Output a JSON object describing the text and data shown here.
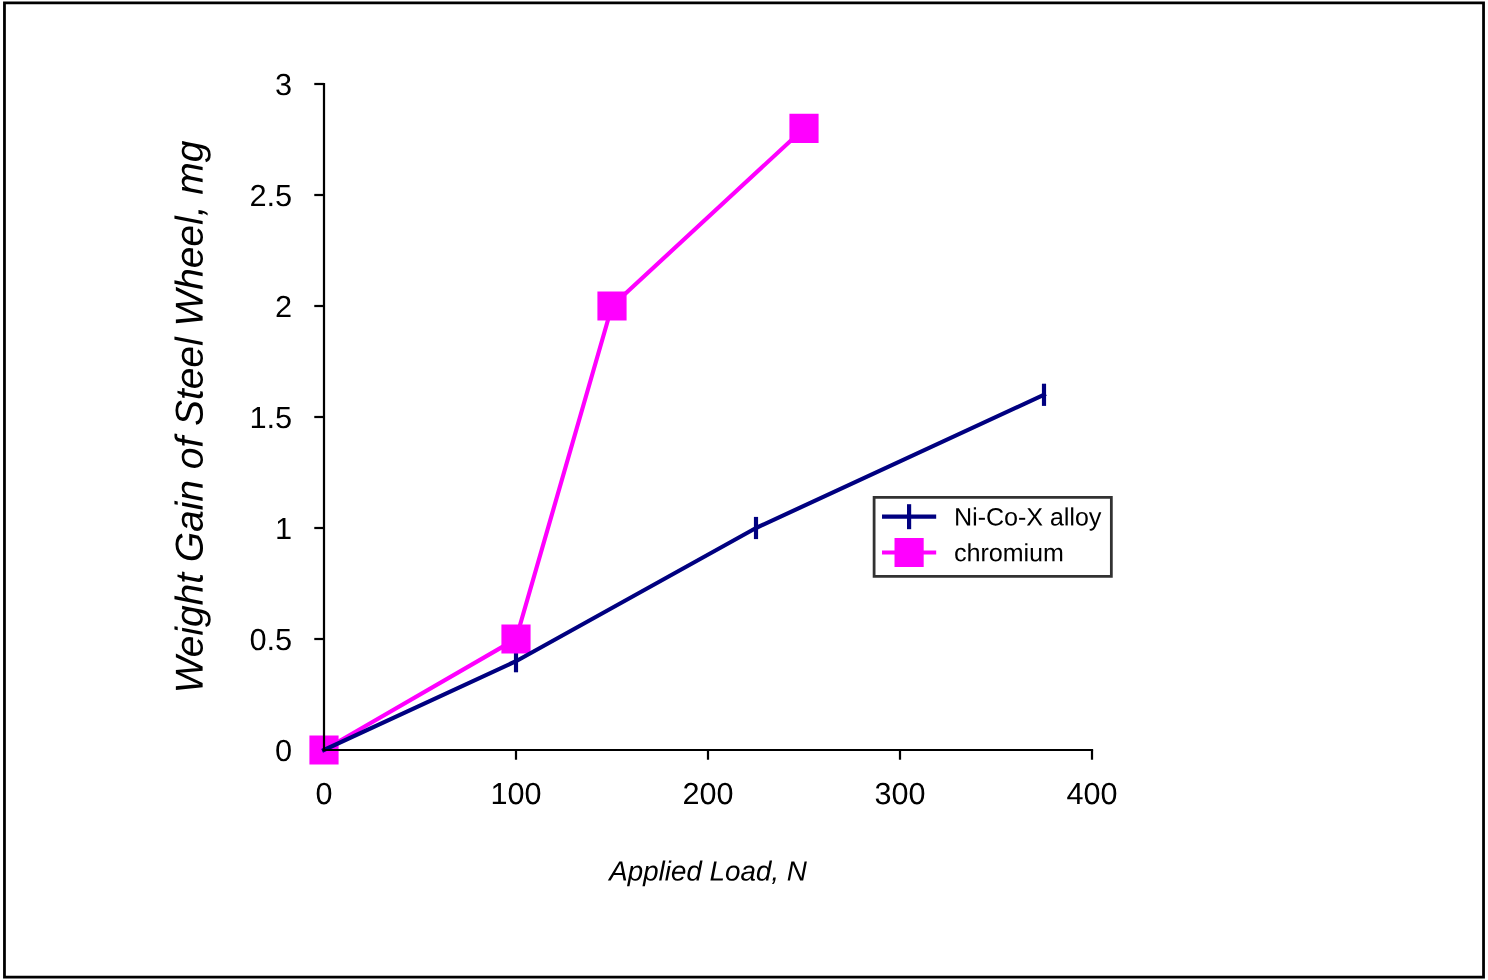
{
  "chart_data": {
    "type": "line",
    "xlabel": "Applied Load, N",
    "ylabel": "Weight Gain of Steel Wheel, mg",
    "series": [
      {
        "name": "Ni-Co-X alloy",
        "color": "#000080",
        "x": [
          0,
          100,
          225,
          375
        ],
        "values": [
          0,
          0.4,
          1.0,
          1.6
        ],
        "errors": [
          null,
          0.05,
          0.05,
          0.05
        ],
        "marker": "none"
      },
      {
        "name": "chromium",
        "color": "#ff00ff",
        "x": [
          0,
          100,
          150,
          250
        ],
        "values": [
          0,
          0.5,
          2.0,
          2.8
        ],
        "marker": "square"
      }
    ],
    "xlim": [
      0,
      400
    ],
    "xticks": [
      0,
      100,
      200,
      300,
      400
    ],
    "ylim": [
      0,
      3
    ],
    "yticks": [
      0,
      0.5,
      1,
      1.5,
      2,
      2.5,
      3
    ],
    "grid": false,
    "legend": "right",
    "line_style": "solid"
  }
}
